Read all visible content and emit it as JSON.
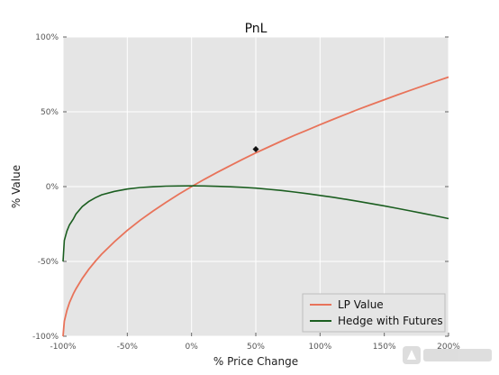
{
  "chart_data": {
    "type": "line",
    "title": "PnL",
    "xlabel": "% Price Change",
    "ylabel": "% Value",
    "xlim": [
      -100,
      200
    ],
    "ylim": [
      -100,
      100
    ],
    "grid": true,
    "legend_position": "bottom-right",
    "x_ticks": [
      -100,
      -50,
      0,
      50,
      100,
      150,
      200
    ],
    "y_ticks": [
      -100,
      -50,
      0,
      50,
      100
    ],
    "x_tick_labels": [
      "-100%",
      "-50%",
      "0%",
      "50%",
      "100%",
      "150%",
      "200%"
    ],
    "y_tick_labels": [
      "-100%",
      "-50%",
      "0%",
      "50%",
      "100%"
    ],
    "series": [
      {
        "name": "LP Value",
        "color": "#e8735a",
        "x": [
          -100,
          -99,
          -97,
          -95,
          -92,
          -90,
          -85,
          -80,
          -75,
          -70,
          -60,
          -50,
          -40,
          -30,
          -20,
          -10,
          0,
          10,
          20,
          30,
          40,
          50,
          60,
          70,
          80,
          90,
          100,
          110,
          120,
          130,
          140,
          150,
          160,
          170,
          180,
          190,
          200
        ],
        "y": [
          -100,
          -90,
          -82.7,
          -77.6,
          -71.7,
          -68.4,
          -61.3,
          -55.3,
          -50,
          -45.2,
          -36.8,
          -29.3,
          -22.5,
          -16.3,
          -10.6,
          -5.1,
          0,
          4.9,
          9.5,
          14,
          18.3,
          22.5,
          26.5,
          30.4,
          34.2,
          37.8,
          41.4,
          44.9,
          48.3,
          51.7,
          54.9,
          58.1,
          61.2,
          64.3,
          67.3,
          70.3,
          73.2
        ]
      },
      {
        "name": "Hedge with Futures",
        "color": "#1b5e20",
        "x": [
          -100,
          -99,
          -97,
          -95,
          -92,
          -90,
          -85,
          -80,
          -75,
          -70,
          -60,
          -50,
          -40,
          -30,
          -20,
          -10,
          0,
          10,
          20,
          30,
          40,
          50,
          60,
          70,
          80,
          90,
          100,
          110,
          120,
          130,
          140,
          150,
          160,
          170,
          180,
          190,
          200
        ],
        "y": [
          -50,
          -36,
          -29.7,
          -25.6,
          -21.7,
          -18.4,
          -13.3,
          -10,
          -7.5,
          -5.5,
          -3.2,
          -1.6,
          -0.6,
          -0.1,
          0.3,
          0.4,
          0.5,
          0.4,
          0.2,
          -0.1,
          -0.5,
          -1,
          -1.8,
          -2.6,
          -3.6,
          -4.7,
          -5.9,
          -7.1,
          -8.5,
          -9.9,
          -11.4,
          -12.9,
          -14.5,
          -16.2,
          -17.9,
          -19.6,
          -21.4
        ]
      }
    ],
    "marker": {
      "x": 50,
      "y": 25
    }
  }
}
